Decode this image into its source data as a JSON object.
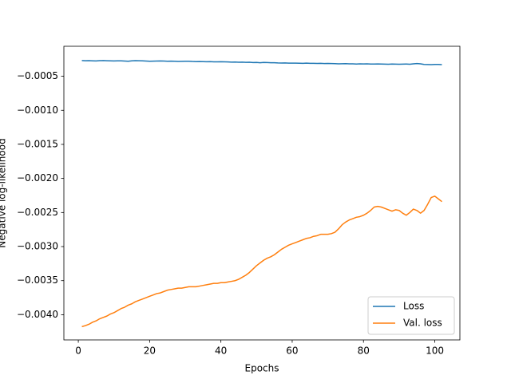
{
  "chart_data": {
    "type": "line",
    "xlabel": "Epochs",
    "ylabel": "Negative log-likelihood",
    "x": [
      1,
      2,
      3,
      4,
      5,
      6,
      7,
      8,
      9,
      10,
      11,
      12,
      13,
      14,
      15,
      16,
      17,
      18,
      19,
      20,
      21,
      22,
      23,
      24,
      25,
      26,
      27,
      28,
      29,
      30,
      31,
      32,
      33,
      34,
      35,
      36,
      37,
      38,
      39,
      40,
      41,
      42,
      43,
      44,
      45,
      46,
      47,
      48,
      49,
      50,
      51,
      52,
      53,
      54,
      55,
      56,
      57,
      58,
      59,
      60,
      61,
      62,
      63,
      64,
      65,
      66,
      67,
      68,
      69,
      70,
      71,
      72,
      73,
      74,
      75,
      76,
      77,
      78,
      79,
      80,
      81,
      82,
      83,
      84,
      85,
      86,
      87,
      88,
      89,
      90,
      91,
      92,
      93,
      94,
      95,
      96,
      97,
      98,
      99,
      100,
      101,
      102
    ],
    "series": [
      {
        "name": "Loss",
        "color": "#1f77b4",
        "values": [
          -0.00027,
          -0.000272,
          -0.000271,
          -0.000273,
          -0.000275,
          -0.000271,
          -0.00027,
          -0.000272,
          -0.000273,
          -0.000275,
          -0.000274,
          -0.000273,
          -0.000276,
          -0.000279,
          -0.000274,
          -0.000271,
          -0.000272,
          -0.000273,
          -0.000276,
          -0.000279,
          -0.000278,
          -0.000276,
          -0.000275,
          -0.000277,
          -0.000279,
          -0.000278,
          -0.00028,
          -0.000282,
          -0.000281,
          -0.00028,
          -0.000279,
          -0.000283,
          -0.000285,
          -0.000284,
          -0.000285,
          -0.000287,
          -0.000286,
          -0.000289,
          -0.000288,
          -0.000287,
          -0.000289,
          -0.00029,
          -0.000293,
          -0.000292,
          -0.000294,
          -0.000293,
          -0.000296,
          -0.000295,
          -0.000298,
          -0.000297,
          -0.000301,
          -0.000297,
          -0.000299,
          -0.000302,
          -0.000301,
          -0.000305,
          -0.000306,
          -0.000305,
          -0.000307,
          -0.000308,
          -0.000307,
          -0.000309,
          -0.00031,
          -0.000308,
          -0.000311,
          -0.00031,
          -0.000312,
          -0.000311,
          -0.000313,
          -0.000312,
          -0.000313,
          -0.000315,
          -0.000318,
          -0.000316,
          -0.000315,
          -0.000317,
          -0.000318,
          -0.00032,
          -0.000317,
          -0.000319,
          -0.000318,
          -0.00032,
          -0.000321,
          -0.000319,
          -0.00032,
          -0.000322,
          -0.000323,
          -0.000321,
          -0.000322,
          -0.000323,
          -0.000322,
          -0.000321,
          -0.000323,
          -0.000318,
          -0.000313,
          -0.000318,
          -0.000326,
          -0.000328,
          -0.000329,
          -0.000327,
          -0.000326,
          -0.000329
        ]
      },
      {
        "name": "Val. loss",
        "color": "#ff7f0e",
        "values": [
          -0.004175,
          -0.00416,
          -0.00414,
          -0.00411,
          -0.00409,
          -0.00406,
          -0.00404,
          -0.00402,
          -0.00399,
          -0.00397,
          -0.00394,
          -0.00391,
          -0.00389,
          -0.00386,
          -0.00384,
          -0.00381,
          -0.00379,
          -0.00377,
          -0.00375,
          -0.00373,
          -0.00371,
          -0.00369,
          -0.00368,
          -0.00366,
          -0.00364,
          -0.00363,
          -0.00362,
          -0.00361,
          -0.00361,
          -0.0036,
          -0.00359,
          -0.00359,
          -0.00359,
          -0.00358,
          -0.00357,
          -0.00356,
          -0.00355,
          -0.00354,
          -0.00354,
          -0.00353,
          -0.00353,
          -0.00352,
          -0.00351,
          -0.0035,
          -0.00348,
          -0.00345,
          -0.00342,
          -0.00338,
          -0.00333,
          -0.00328,
          -0.00324,
          -0.0032,
          -0.00317,
          -0.00315,
          -0.00312,
          -0.00308,
          -0.00304,
          -0.00301,
          -0.00298,
          -0.00296,
          -0.00294,
          -0.00292,
          -0.0029,
          -0.00288,
          -0.00287,
          -0.00285,
          -0.00284,
          -0.00282,
          -0.00282,
          -0.00282,
          -0.00281,
          -0.00279,
          -0.00274,
          -0.00268,
          -0.00264,
          -0.00261,
          -0.00259,
          -0.00257,
          -0.00256,
          -0.00254,
          -0.00251,
          -0.00247,
          -0.00242,
          -0.00241,
          -0.00242,
          -0.00244,
          -0.00246,
          -0.00248,
          -0.00246,
          -0.00247,
          -0.00251,
          -0.00254,
          -0.0025,
          -0.00245,
          -0.00247,
          -0.00251,
          -0.00247,
          -0.00238,
          -0.00228,
          -0.00226,
          -0.0023,
          -0.00234
        ]
      }
    ],
    "xlim": [
      -4.05,
      107.05
    ],
    "xticks": [
      0,
      20,
      40,
      60,
      80,
      100
    ],
    "ylim": [
      -0.00437,
      -6e-05
    ],
    "yticks": [
      {
        "value": -0.004,
        "label": "−0.0040"
      },
      {
        "value": -0.0035,
        "label": "−0.0035"
      },
      {
        "value": -0.003,
        "label": "−0.0030"
      },
      {
        "value": -0.0025,
        "label": "−0.0025"
      },
      {
        "value": -0.002,
        "label": "−0.0020"
      },
      {
        "value": -0.0015,
        "label": "−0.0015"
      },
      {
        "value": -0.001,
        "label": "−0.0010"
      },
      {
        "value": -0.0005,
        "label": "−0.0005"
      }
    ],
    "grid": false,
    "legend": "lower right"
  }
}
